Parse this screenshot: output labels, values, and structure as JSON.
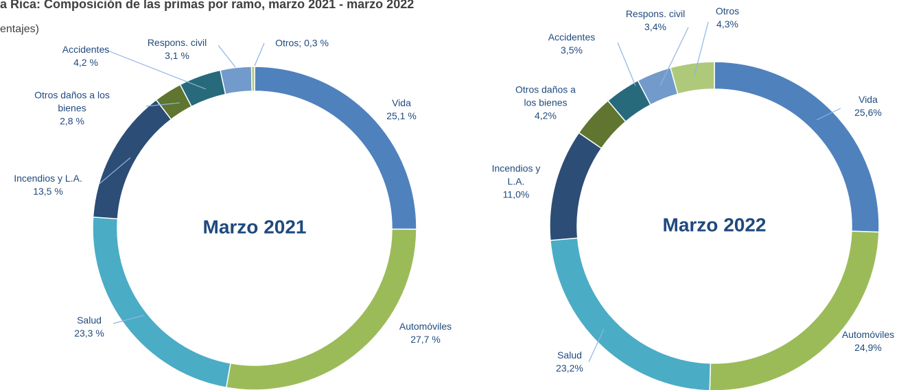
{
  "header": {
    "title": "a Rica: Composición de las primas por ramo, marzo 2021 - marzo 2022",
    "subtitle": "entajes)"
  },
  "chart_data": [
    {
      "type": "donut",
      "center_label": "Marzo 2021",
      "categories": [
        "Vida",
        "Automóviles",
        "Salud",
        "Incendios y L.A.",
        "Otros daños a los bienes",
        "Accidentes",
        "Respons. civil",
        "Otros;"
      ],
      "values": [
        25.1,
        27.7,
        23.3,
        13.5,
        2.8,
        4.2,
        3.1,
        0.3
      ],
      "value_labels": [
        "25,1 %",
        "27,7 %",
        "23,3 %",
        "13,5 %",
        "2,8 %",
        "4,2 %",
        "3,1 %",
        "0,3 %"
      ],
      "colors": [
        "#4f81bd",
        "#9bbb59",
        "#4bacc6",
        "#2c4d75",
        "#5f7530",
        "#276a7c",
        "#729aca",
        "#afc97a"
      ]
    },
    {
      "type": "donut",
      "center_label": "Marzo 2022",
      "categories": [
        "Vida",
        "Automóviles",
        "Salud",
        "Incendios y L.A.",
        "Otros daños a los bienes",
        "Accidentes",
        "Respons. civil",
        "Otros"
      ],
      "values": [
        25.6,
        24.9,
        23.2,
        11.0,
        4.2,
        3.5,
        3.4,
        4.3
      ],
      "value_labels": [
        "25,6%",
        "24,9%",
        "23,2%",
        "11,0%",
        "4,2%",
        "3,5%",
        "3,4%",
        "4,3%"
      ],
      "colors": [
        "#4f81bd",
        "#9bbb59",
        "#4bacc6",
        "#2c4d75",
        "#5f7530",
        "#276a7c",
        "#729aca",
        "#afc97a"
      ]
    }
  ]
}
